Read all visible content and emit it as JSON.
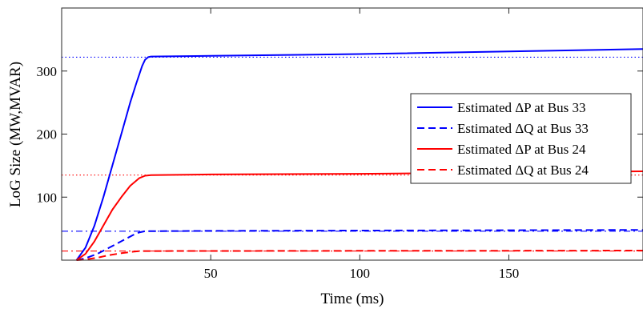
{
  "chart_data": {
    "type": "line",
    "title": "",
    "xlabel": "Time (ms)",
    "ylabel": "LoG Size (MW,MVAR)",
    "xlim": [
      0,
      195
    ],
    "ylim": [
      0,
      400
    ],
    "xticks": [
      50,
      100,
      150
    ],
    "yticks": [
      100,
      200,
      300
    ],
    "grid": false,
    "legend_placement": "right",
    "series": [
      {
        "name": "Estimated ΔP at Bus 33",
        "color": "#0000ff",
        "style": "solid",
        "x": [
          5,
          8,
          11,
          14,
          17,
          20,
          23,
          25,
          27,
          28,
          29,
          30,
          50,
          100,
          150,
          195
        ],
        "y": [
          0,
          20,
          55,
          100,
          150,
          200,
          250,
          280,
          308,
          318,
          322,
          323,
          324,
          327,
          331,
          335
        ]
      },
      {
        "name": "Estimated ΔQ at Bus 33",
        "color": "#0000ff",
        "style": "dashed",
        "x": [
          5,
          8,
          12,
          16,
          20,
          24,
          26,
          28,
          50,
          100,
          150,
          195
        ],
        "y": [
          0,
          3,
          10,
          20,
          30,
          40,
          44,
          46,
          46.5,
          47,
          47.5,
          48
        ]
      },
      {
        "name": "Estimated ΔP at Bus 24",
        "color": "#ff0000",
        "style": "solid",
        "x": [
          5,
          8,
          11,
          14,
          17,
          20,
          23,
          26,
          28,
          30,
          50,
          100,
          150,
          195
        ],
        "y": [
          0,
          10,
          30,
          55,
          80,
          100,
          118,
          130,
          134,
          135,
          136,
          137,
          139,
          141
        ]
      },
      {
        "name": "Estimated ΔQ at Bus 24",
        "color": "#ff0000",
        "style": "dashed",
        "x": [
          5,
          8,
          12,
          16,
          20,
          24,
          26,
          28,
          50,
          100,
          150,
          195
        ],
        "y": [
          0,
          1,
          4,
          8,
          11,
          13.5,
          14.2,
          14.5,
          14.6,
          14.8,
          15,
          15.2
        ]
      }
    ],
    "reference_lines": [
      {
        "y": 322,
        "color": "#0000ff",
        "style": "dotted"
      },
      {
        "y": 135,
        "color": "#ff0000",
        "style": "dotted"
      },
      {
        "y": 46,
        "color": "#0000ff",
        "style": "dashdot"
      },
      {
        "y": 14.5,
        "color": "#ff0000",
        "style": "dashdot"
      }
    ]
  }
}
